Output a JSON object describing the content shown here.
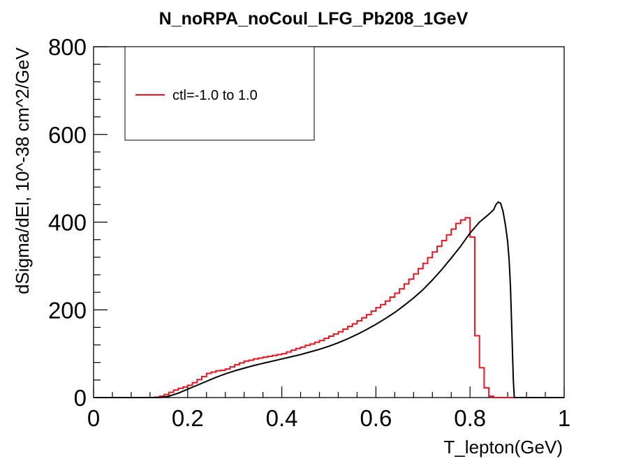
{
  "colors": {
    "hist": "#e8141e",
    "curve": "#000000",
    "frame": "#000000",
    "background": "#ffffff"
  },
  "chart_data": {
    "type": "line",
    "title": "N_noRPA_noCoul_LFG_Pb208_1GeV",
    "xlabel": "T_lepton(GeV)",
    "ylabel": "dSigma/dEl, 10^-38 cm^2/GeV",
    "xlim": [
      0,
      1
    ],
    "ylim": [
      0,
      800
    ],
    "x_ticks": [
      0,
      0.2,
      0.4,
      0.6,
      0.8,
      1
    ],
    "x_tick_labels": [
      "0",
      "0.2",
      "0.4",
      "0.6",
      "0.8",
      "1"
    ],
    "y_ticks": [
      0,
      200,
      400,
      600,
      800
    ],
    "y_tick_labels": [
      "0",
      "200",
      "400",
      "600",
      "800"
    ],
    "grid": false,
    "legend": {
      "position": "top-left",
      "entries": [
        "ctl=-1.0 to 1.0"
      ]
    },
    "series": [
      {
        "name": "ctl=-1.0 to 1.0",
        "kind": "step-histogram",
        "color": "#e8141e",
        "bin_width": 0.01,
        "bin_start": 0,
        "values": [
          0,
          0,
          0,
          0,
          0,
          0,
          0,
          0,
          0,
          0,
          0,
          0,
          0,
          1,
          3,
          7,
          12,
          17,
          21,
          24,
          28,
          34,
          41,
          48,
          55,
          58,
          61,
          62,
          65,
          70,
          75,
          79,
          83,
          85,
          88,
          90,
          92,
          94,
          96,
          98,
          100,
          104,
          108,
          112,
          115,
          119,
          122,
          126,
          130,
          135,
          140,
          145,
          150,
          156,
          162,
          168,
          175,
          182,
          189,
          197,
          205,
          212,
          220,
          229,
          238,
          248,
          259,
          270,
          282,
          294,
          306,
          319,
          332,
          345,
          358,
          371,
          384,
          397,
          405,
          410,
          366,
          141,
          68,
          22,
          3,
          0,
          0,
          0,
          0,
          0,
          0,
          0,
          0,
          0,
          0,
          0,
          0,
          0,
          0,
          0
        ]
      },
      {
        "kind": "curve",
        "color": "#000000",
        "points": [
          [
            0.0,
            0
          ],
          [
            0.14,
            0
          ],
          [
            0.16,
            3
          ],
          [
            0.18,
            10
          ],
          [
            0.2,
            19
          ],
          [
            0.22,
            28
          ],
          [
            0.24,
            37
          ],
          [
            0.26,
            46
          ],
          [
            0.28,
            54
          ],
          [
            0.3,
            61
          ],
          [
            0.32,
            67
          ],
          [
            0.34,
            73
          ],
          [
            0.36,
            78
          ],
          [
            0.38,
            83
          ],
          [
            0.4,
            88
          ],
          [
            0.42,
            93
          ],
          [
            0.44,
            98
          ],
          [
            0.46,
            104
          ],
          [
            0.48,
            110
          ],
          [
            0.5,
            117
          ],
          [
            0.52,
            125
          ],
          [
            0.54,
            134
          ],
          [
            0.56,
            144
          ],
          [
            0.58,
            155
          ],
          [
            0.6,
            167
          ],
          [
            0.62,
            180
          ],
          [
            0.64,
            194
          ],
          [
            0.66,
            210
          ],
          [
            0.68,
            227
          ],
          [
            0.7,
            246
          ],
          [
            0.72,
            268
          ],
          [
            0.74,
            292
          ],
          [
            0.76,
            318
          ],
          [
            0.78,
            345
          ],
          [
            0.8,
            375
          ],
          [
            0.82,
            400
          ],
          [
            0.84,
            418
          ],
          [
            0.85,
            428
          ],
          [
            0.855,
            440
          ],
          [
            0.86,
            446
          ],
          [
            0.865,
            443
          ],
          [
            0.87,
            425
          ],
          [
            0.875,
            395
          ],
          [
            0.88,
            355
          ],
          [
            0.883,
            315
          ],
          [
            0.886,
            250
          ],
          [
            0.888,
            180
          ],
          [
            0.89,
            110
          ],
          [
            0.892,
            40
          ],
          [
            0.894,
            0
          ],
          [
            1.0,
            0
          ]
        ]
      }
    ]
  }
}
